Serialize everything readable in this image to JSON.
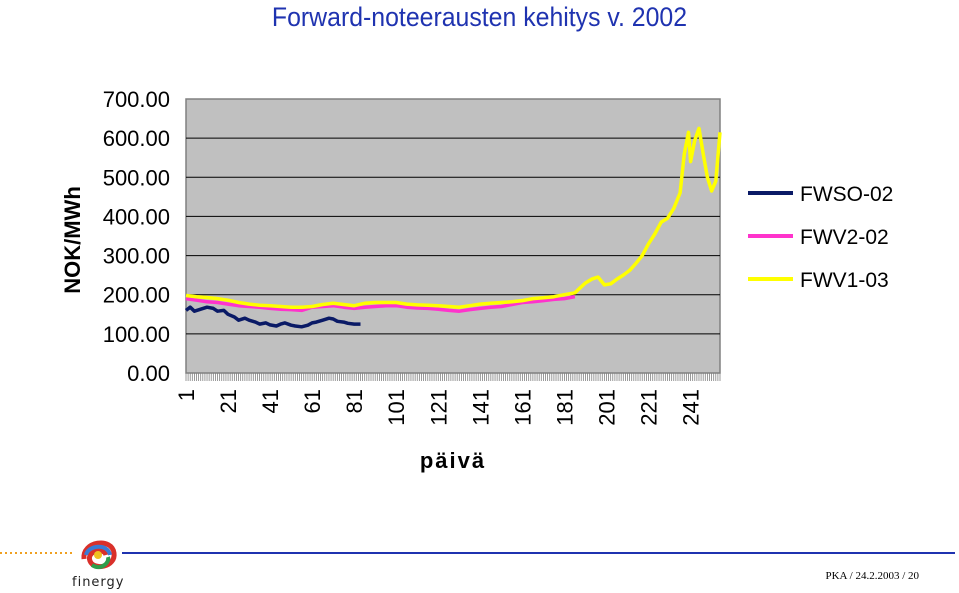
{
  "slide": {
    "title": "Forward-noteerausten kehitys v. 2002",
    "footer": "PKA / 24.2.2003 / 20",
    "logo_text": "finergy",
    "logo_icon": "finergy-logo-icon"
  },
  "colors": {
    "plot_bg": "#c0c0c0",
    "title": "#1f33b0",
    "footer_rule": "#1f33b0",
    "footer_dots": "#f0a020"
  },
  "chart_data": {
    "type": "line",
    "title": "Forward-noteerausten kehitys v. 2002",
    "xlabel": "päivä",
    "ylabel": "NOK/MWh",
    "ylim": [
      0,
      700
    ],
    "xlim": [
      1,
      255
    ],
    "y_ticks": [
      "0.00",
      "100.00",
      "200.00",
      "300.00",
      "400.00",
      "500.00",
      "600.00",
      "700.00"
    ],
    "x_ticks": [
      "1",
      "21",
      "41",
      "61",
      "81",
      "101",
      "121",
      "141",
      "161",
      "181",
      "201",
      "221",
      "241"
    ],
    "grid": true,
    "legend_position": "right",
    "series": [
      {
        "name": "FWSO-02",
        "color": "#0a1a66",
        "x": [
          1,
          3,
          5,
          8,
          11,
          14,
          16,
          19,
          21,
          24,
          26,
          29,
          31,
          34,
          36,
          39,
          41,
          44,
          46,
          48,
          51,
          53,
          56,
          59,
          61,
          63,
          66,
          69,
          71,
          73,
          76,
          78,
          81,
          84
        ],
        "y": [
          160,
          168,
          158,
          163,
          168,
          165,
          158,
          160,
          150,
          143,
          135,
          140,
          135,
          130,
          125,
          128,
          123,
          120,
          125,
          128,
          122,
          120,
          118,
          122,
          128,
          130,
          135,
          140,
          138,
          132,
          130,
          127,
          125,
          125
        ]
      },
      {
        "name": "FWV2-02",
        "color": "#ff33cc",
        "x": [
          1,
          6,
          11,
          16,
          21,
          26,
          31,
          36,
          41,
          46,
          51,
          56,
          61,
          66,
          71,
          76,
          81,
          86,
          91,
          96,
          101,
          106,
          111,
          116,
          121,
          126,
          131,
          136,
          141,
          146,
          151,
          156,
          161,
          166,
          171,
          176,
          181,
          186
        ],
        "y": [
          190,
          186,
          182,
          180,
          176,
          172,
          170,
          168,
          165,
          163,
          162,
          160,
          168,
          170,
          172,
          168,
          165,
          168,
          170,
          172,
          172,
          168,
          166,
          165,
          163,
          160,
          158,
          162,
          165,
          168,
          170,
          175,
          180,
          182,
          185,
          188,
          190,
          195
        ]
      },
      {
        "name": "FWV1-03",
        "color": "#ffff00",
        "x": [
          1,
          6,
          11,
          16,
          21,
          26,
          31,
          36,
          41,
          46,
          51,
          56,
          61,
          66,
          71,
          76,
          81,
          86,
          91,
          96,
          101,
          106,
          111,
          116,
          121,
          126,
          131,
          136,
          141,
          146,
          151,
          156,
          161,
          166,
          171,
          176,
          181,
          186,
          188,
          191,
          194,
          197,
          200,
          203,
          206,
          209,
          212,
          215,
          218,
          221,
          224,
          227,
          230,
          233,
          236,
          238,
          240,
          241,
          243,
          245,
          247,
          249,
          251,
          253,
          255
        ],
        "y": [
          198,
          195,
          193,
          190,
          186,
          180,
          176,
          173,
          172,
          170,
          168,
          168,
          170,
          175,
          178,
          175,
          172,
          178,
          180,
          180,
          180,
          176,
          174,
          173,
          172,
          170,
          168,
          172,
          176,
          178,
          180,
          182,
          185,
          190,
          192,
          195,
          200,
          205,
          215,
          230,
          240,
          245,
          225,
          228,
          240,
          250,
          262,
          280,
          300,
          330,
          355,
          385,
          395,
          420,
          460,
          560,
          615,
          540,
          595,
          625,
          560,
          500,
          465,
          490,
          615
        ]
      }
    ]
  }
}
